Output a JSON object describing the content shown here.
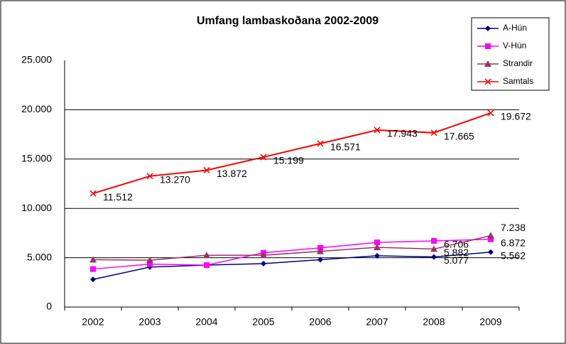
{
  "chart_data": {
    "type": "line",
    "title": "Umfang lambaskoðana 2002-2009",
    "categories": [
      "2002",
      "2003",
      "2004",
      "2005",
      "2006",
      "2007",
      "2008",
      "2009"
    ],
    "ylim": [
      0,
      25000
    ],
    "yticks": [
      0,
      {
        "value": 5000,
        "label": "5.000"
      },
      {
        "value": 10000,
        "label": "10.000"
      },
      {
        "value": 15000,
        "label": "15.000"
      },
      {
        "value": 20000,
        "label": "20.000"
      },
      {
        "value": 25000,
        "label": "25.000"
      }
    ],
    "grid": true,
    "legend": "top-right",
    "series": [
      {
        "name": "A-Hún",
        "color": "#000080",
        "marker": "diamond",
        "values": [
          2800,
          4050,
          4250,
          4400,
          4800,
          5200,
          5077,
          5562
        ],
        "value_labels": [
          null,
          null,
          null,
          null,
          null,
          null,
          "5.077",
          "5.562"
        ]
      },
      {
        "name": "V-Hún",
        "color": "#ff00ff",
        "marker": "square",
        "values": [
          3850,
          4350,
          4250,
          5500,
          6000,
          6550,
          6706,
          6872
        ],
        "value_labels": [
          null,
          null,
          null,
          null,
          null,
          null,
          "6.706",
          "6.872"
        ]
      },
      {
        "name": "Strandir",
        "color": "#993366",
        "marker": "triangle",
        "values": [
          4800,
          4750,
          5250,
          5250,
          5650,
          6050,
          5882,
          7238
        ],
        "value_labels": [
          null,
          null,
          null,
          null,
          null,
          null,
          "5.882",
          "7.238"
        ]
      },
      {
        "name": "Samtals",
        "color": "#ff0000",
        "marker": "x",
        "values": [
          11512,
          13270,
          13872,
          15199,
          16571,
          17943,
          17665,
          19672
        ],
        "value_labels": [
          "11.512",
          "13.270",
          "13.872",
          "15.199",
          "16.571",
          "17.943",
          "17.665",
          "19.672"
        ]
      }
    ]
  }
}
